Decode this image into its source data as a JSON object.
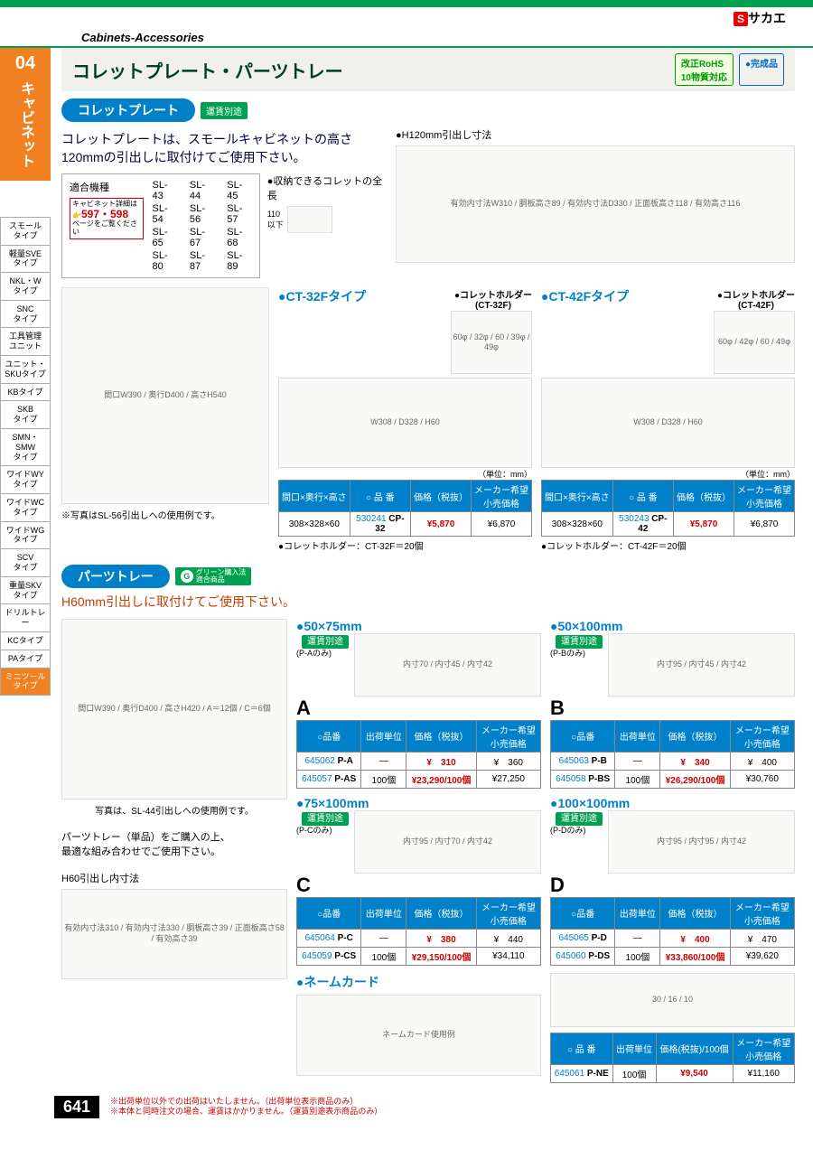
{
  "brand": {
    "logo": "S",
    "name": "サカエ"
  },
  "header": {
    "category": "Cabinets-Accessories"
  },
  "sidebar": {
    "num": "04",
    "title": "キャビネット",
    "items": [
      "スモール\nタイプ",
      "軽量SVE\nタイプ",
      "NKL・W\nタイプ",
      "SNC\nタイプ",
      "工具管理\nユニット",
      "ユニット・\nSKUタイプ",
      "KBタイプ",
      "SKB\nタイプ",
      "SMN・SMW\nタイプ",
      "ワイドWY\nタイプ",
      "ワイドWC\nタイプ",
      "ワイドWG\nタイプ",
      "SCV\nタイプ",
      "重量SKV\nタイプ",
      "ドリルトレー",
      "KCタイプ",
      "PAタイプ",
      "ミニツール\nタイプ"
    ]
  },
  "page": {
    "title": "コレットプレート・パーツトレー",
    "badge_rohs": "改正RoHS\n10物質対応",
    "badge_done": "●完成品"
  },
  "section1": {
    "pill": "コレットプレート",
    "ship": "運賃別途",
    "intro": "コレットプレートは、スモールキャビネットの高さ\n120mmの引出しに取付けてご使用下さい。",
    "model_label": "適合機種",
    "models": [
      "SL-43",
      "SL-44",
      "SL-45",
      "SL-54",
      "SL-56",
      "SL-57",
      "SL-65",
      "SL-67",
      "SL-68",
      "SL-80",
      "SL-87",
      "SL-89"
    ],
    "ref_top": "キャビネット詳細は",
    "ref_pages": "597・598",
    "ref_bot": "ページをご覧ください",
    "collet_len_label": "●収納できるコレットの全長",
    "collet_len_dim": "110\n以下",
    "drawer_label": "●H120mm引出し寸法",
    "drawer_dims": "有効内寸法W310 / 胴板高さ89 / 有効内寸法D330 / 正面板高さ118 / 有効高さ116",
    "cabinet_dims": "間口W390 / 奥行D400 / 高さH540",
    "cabinet_caption": "※写真はSL-56引出しへの使用例です。",
    "ct32": {
      "title": "●CT-32Fタイプ",
      "holder": "●コレットホルダー\n(CT-32F)",
      "holder_dims": "60φ / 32φ / 60 / 39φ / 49φ",
      "plate_dims": "W308 / D328 / H60",
      "unit": "（単位：mm）",
      "th": [
        "間口×奥行×高さ",
        "○ 品 番",
        "価格（税抜）",
        "メーカー希望\n小売価格"
      ],
      "row": [
        "308×328×60",
        "530241",
        "CP-32",
        "¥5,870",
        "¥6,870"
      ],
      "note": "●コレットホルダー：CT-32F＝20個"
    },
    "ct42": {
      "title": "●CT-42Fタイプ",
      "holder": "●コレットホルダー\n(CT-42F)",
      "holder_dims": "60φ / 42φ / 60 / 49φ",
      "plate_dims": "W308 / D328 / H60",
      "unit": "（単位：mm）",
      "th": [
        "間口×奥行×高さ",
        "○ 品 番",
        "価格（税抜）",
        "メーカー希望\n小売価格"
      ],
      "row": [
        "308×328×60",
        "530243",
        "CP-42",
        "¥5,870",
        "¥6,870"
      ],
      "note": "●コレットホルダー：CT-42F＝20個"
    }
  },
  "section2": {
    "pill": "パーツトレー",
    "g_label": "グリーン購入法\n適合商品",
    "intro": "H60mm引出しに取付けてご使用下さい。",
    "cabinet_dims": "間口W390 / 奥行D400 / 高さH420 / A＝12個 / C＝6個",
    "cabinet_caption": "写真は、SL-44引出しへの使用例です。",
    "advice": "パーツトレー（単品）をご購入の上、\n最適な組み合わせでご使用下さい。",
    "h60_label": "H60引出し内寸法",
    "h60_dims": "有効内寸法310 / 有効内寸法330 / 胴板高さ39 / 正面板高さ58 / 有効高さ39",
    "th": [
      "○品番",
      "出荷単位",
      "価格（税抜）",
      "メーカー希望\n小売価格"
    ],
    "trays": {
      "A": {
        "size": "●50×75mm",
        "ship_note": "(P-Aのみ)",
        "dims": "内寸70 / 内寸45 / 内寸42",
        "rows": [
          [
            "645062",
            "P-A",
            "—",
            "¥　310",
            "¥　360"
          ],
          [
            "645057",
            "P-AS",
            "100個",
            "¥23,290/100個",
            "¥27,250"
          ]
        ]
      },
      "B": {
        "size": "●50×100mm",
        "ship_note": "(P-Bのみ)",
        "dims": "内寸95 / 内寸45 / 内寸42",
        "rows": [
          [
            "645063",
            "P-B",
            "—",
            "¥　340",
            "¥　400"
          ],
          [
            "645058",
            "P-BS",
            "100個",
            "¥26,290/100個",
            "¥30,760"
          ]
        ]
      },
      "C": {
        "size": "●75×100mm",
        "ship_note": "(P-Cのみ)",
        "dims": "内寸95 / 内寸70 / 内寸42",
        "rows": [
          [
            "645064",
            "P-C",
            "—",
            "¥　380",
            "¥　440"
          ],
          [
            "645059",
            "P-CS",
            "100個",
            "¥29,150/100個",
            "¥34,110"
          ]
        ]
      },
      "D": {
        "size": "●100×100mm",
        "ship_note": "(P-Dのみ)",
        "dims": "内寸95 / 内寸95 / 内寸42",
        "rows": [
          [
            "645065",
            "P-D",
            "—",
            "¥　400",
            "¥　470"
          ],
          [
            "645060",
            "P-DS",
            "100個",
            "¥33,860/100個",
            "¥39,620"
          ]
        ]
      }
    },
    "namecard": {
      "title": "●ネームカード",
      "caption": "ネームカード使用例",
      "dims": "30 / 16 / 10",
      "th": [
        "○ 品 番",
        "出荷単位",
        "価格(税抜)/100個",
        "メーカー希望\n小売価格"
      ],
      "row": [
        "645061",
        "P-NE",
        "100個",
        "¥9,540",
        "¥11,160"
      ]
    }
  },
  "footer": {
    "page": "641",
    "note1": "※出荷単位以外での出荷はいたしません。（出荷単位表示商品のみ）",
    "note2": "※本体と同時注文の場合、運賃はかかりません。（運賃別途表示商品のみ）"
  }
}
